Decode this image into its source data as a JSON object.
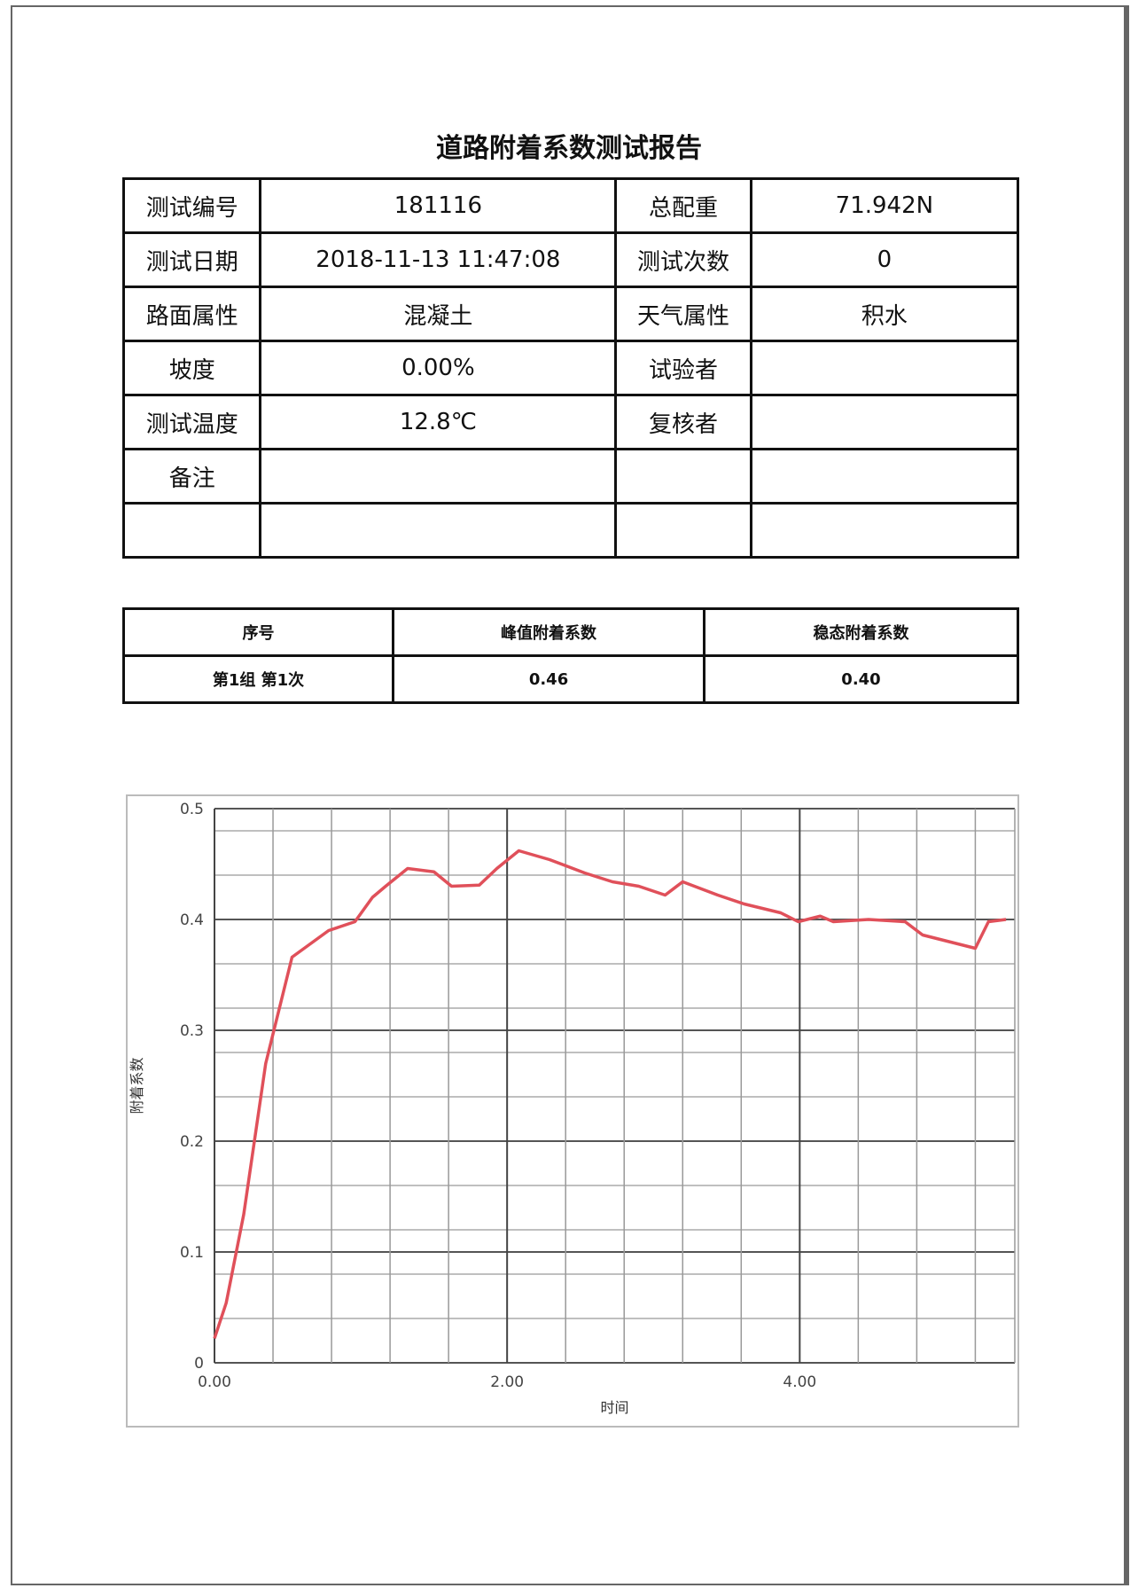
{
  "title": "道路附着系数测试报告",
  "info_table": [
    [
      "测试编号",
      "181116",
      "总配重",
      "71.942N"
    ],
    [
      "测试日期",
      "2018-11-13 11:47:08",
      "测试次数",
      "0"
    ],
    [
      "路面属性",
      "混凝土",
      "天气属性",
      "积水"
    ],
    [
      "坡度",
      "0.00%",
      "试验者",
      ""
    ],
    [
      "测试温度",
      "12.8℃",
      "复核者",
      ""
    ],
    [
      "备注",
      "",
      "",
      ""
    ],
    [
      "",
      "",
      "",
      ""
    ]
  ],
  "result_table": {
    "headers": [
      "序号",
      "峰值附着系数",
      "稳态附着系数"
    ],
    "rows": [
      [
        "第1组 第1次",
        "0.46",
        "0.40"
      ]
    ]
  },
  "chart_data": {
    "type": "line",
    "title": "",
    "xlabel": "时间",
    "ylabel": "附着系数",
    "xlim": [
      0,
      5.47
    ],
    "ylim": [
      0,
      0.5
    ],
    "xticks": [
      "0.00",
      "2.00",
      "4.00"
    ],
    "yticks": [
      "0",
      "0.1",
      "0.2",
      "0.3",
      "0.4",
      "0.5"
    ],
    "grid": true,
    "line_color": "#e0505a",
    "x": [
      0,
      0.08,
      0.2,
      0.35,
      0.53,
      0.78,
      0.96,
      1.08,
      1.17,
      1.32,
      1.5,
      1.62,
      1.81,
      1.93,
      2.08,
      2.29,
      2.53,
      2.72,
      2.9,
      3.08,
      3.2,
      3.44,
      3.62,
      3.87,
      3.99,
      4.14,
      4.23,
      4.47,
      4.72,
      4.84,
      5.08,
      5.2,
      5.29,
      5.41
    ],
    "y": [
      0.022,
      0.054,
      0.134,
      0.27,
      0.366,
      0.39,
      0.398,
      0.42,
      0.43,
      0.446,
      0.443,
      0.43,
      0.431,
      0.446,
      0.462,
      0.454,
      0.442,
      0.434,
      0.43,
      0.422,
      0.434,
      0.422,
      0.414,
      0.406,
      0.398,
      0.403,
      0.398,
      0.4,
      0.398,
      0.386,
      0.378,
      0.374,
      0.398,
      0.4
    ]
  }
}
